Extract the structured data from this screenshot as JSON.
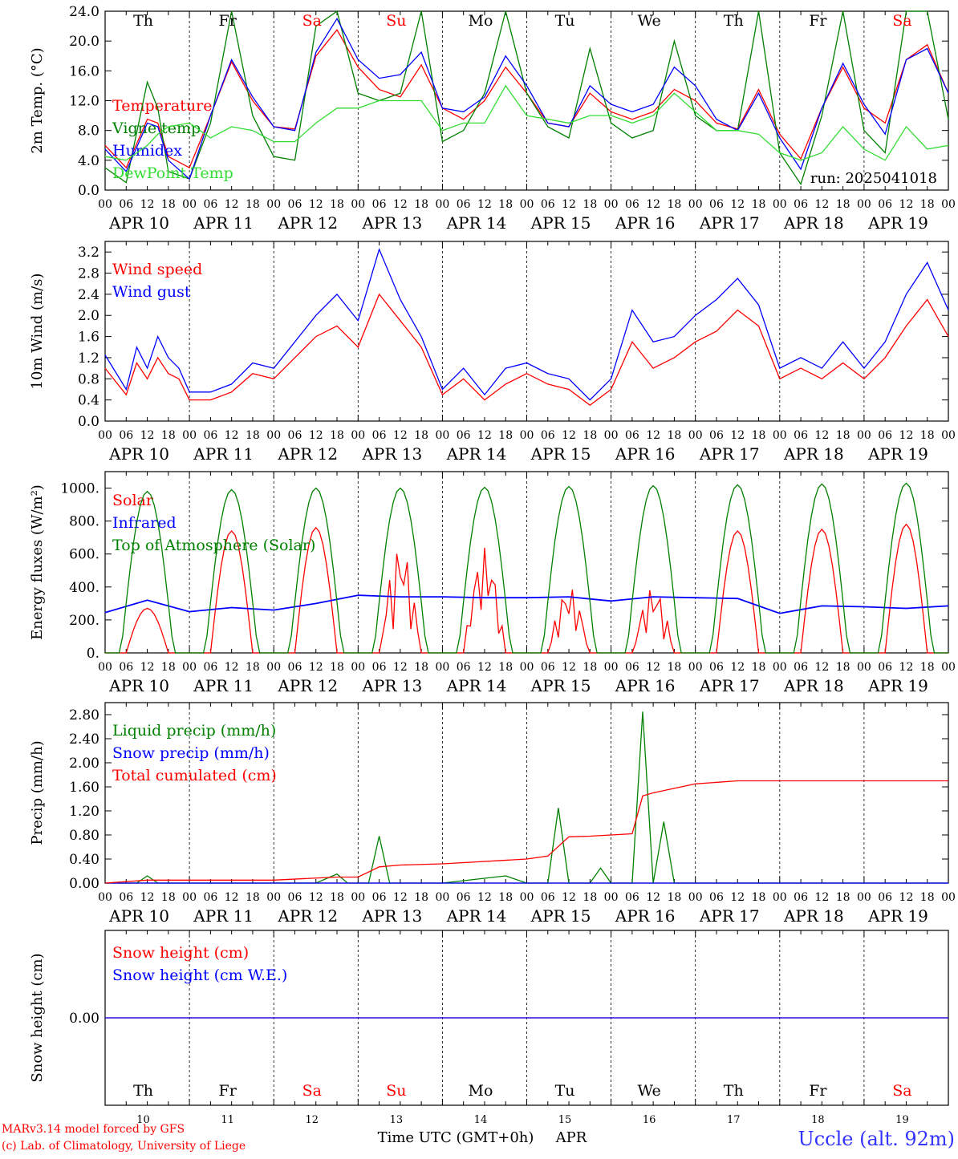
{
  "header": {
    "run_label": "run: 2025041018",
    "model_line_1": "MARv3.14 model forced by GFS",
    "model_line_2": "(c) Lab. of Climatology, University of Liege",
    "location": "Uccle (alt. 92m)",
    "x_title": "Time UTC (GMT+0h)",
    "month": "APR"
  },
  "colors": {
    "red": "#ff0000",
    "green": "#008000",
    "blue": "#0000ff",
    "light_green": "#33dd33",
    "axis": "#000000",
    "day_weekend": "#ff0000",
    "day_weekday": "#000000"
  },
  "time_axis": {
    "hour_ticks": [
      "00",
      "06",
      "12",
      "18"
    ],
    "final_tick": "00",
    "dates": [
      "APR 10",
      "APR 11",
      "APR 12",
      "APR 13",
      "APR 14",
      "APR 15",
      "APR 16",
      "APR 17",
      "APR 18",
      "APR 19"
    ],
    "day_numbers": [
      "10",
      "11",
      "12",
      "13",
      "14",
      "15",
      "16",
      "17",
      "18",
      "19"
    ],
    "weekdays": [
      "Th",
      "Fr",
      "Sa",
      "Su",
      "Mo",
      "Tu",
      "We",
      "Th",
      "Fr",
      "Sa"
    ],
    "weekend_flags": [
      false,
      false,
      true,
      true,
      false,
      false,
      false,
      false,
      false,
      true
    ]
  },
  "chart_data": [
    {
      "id": "temp",
      "type": "line",
      "ylabel": "2m Temp. (°C)",
      "ylim": [
        0,
        24
      ],
      "yticks": [
        "0.0",
        "4.0",
        "8.0",
        "12.0",
        "16.0",
        "20.0",
        "24.0"
      ],
      "x_unit": "hours since APR 10 00 UTC",
      "series": [
        {
          "name": "Temperature",
          "color": "red",
          "x": [
            0,
            6,
            12,
            15,
            18,
            24,
            30,
            36,
            42,
            48,
            54,
            60,
            66,
            72,
            78,
            84,
            90,
            96,
            102,
            108,
            114,
            120,
            126,
            132,
            138,
            144,
            150,
            156,
            162,
            168,
            174,
            180,
            186,
            192,
            198,
            204,
            210,
            216,
            222,
            228,
            234,
            240
          ],
          "y": [
            6.0,
            3.0,
            9.5,
            9.0,
            4.5,
            3.0,
            10.0,
            17.2,
            12.0,
            8.5,
            8.2,
            18.0,
            21.5,
            16.5,
            13.5,
            12.5,
            16.8,
            11.0,
            9.5,
            12.0,
            16.5,
            13.0,
            9.0,
            8.5,
            13.0,
            10.5,
            9.5,
            10.5,
            13.5,
            12.0,
            9.0,
            8.2,
            13.5,
            7.5,
            4.2,
            11.0,
            16.5,
            11.0,
            9.0,
            17.5,
            19.5,
            13.0
          ]
        },
        {
          "name": "Vigne temp",
          "color": "green",
          "x": [
            0,
            6,
            12,
            15,
            18,
            24,
            30,
            36,
            42,
            48,
            54,
            60,
            66,
            72,
            78,
            84,
            90,
            96,
            102,
            108,
            114,
            120,
            126,
            132,
            138,
            144,
            150,
            156,
            162,
            168,
            174,
            180,
            186,
            192,
            198,
            204,
            210,
            216,
            222,
            228,
            234,
            240
          ],
          "y": [
            3.0,
            1.0,
            14.5,
            11.0,
            2.5,
            1.5,
            9.0,
            24.0,
            10.0,
            4.5,
            4.0,
            22.0,
            24.0,
            13.0,
            12.0,
            13.0,
            24.0,
            6.5,
            8.0,
            13.0,
            24.0,
            13.0,
            8.5,
            7.0,
            19.0,
            9.0,
            7.0,
            8.0,
            20.0,
            10.0,
            8.0,
            8.0,
            24.0,
            5.0,
            0.8,
            10.0,
            24.0,
            8.0,
            5.0,
            24.0,
            24.0,
            9.5
          ]
        },
        {
          "name": "Humidex",
          "color": "blue",
          "x": [
            0,
            6,
            12,
            15,
            18,
            24,
            30,
            36,
            42,
            48,
            54,
            60,
            66,
            72,
            78,
            84,
            90,
            96,
            102,
            108,
            114,
            120,
            126,
            132,
            138,
            144,
            150,
            156,
            162,
            168,
            174,
            180,
            186,
            192,
            198,
            204,
            210,
            216,
            222,
            228,
            234,
            240
          ],
          "y": [
            5.5,
            2.5,
            9.0,
            8.5,
            4.0,
            1.5,
            10.0,
            17.5,
            12.5,
            8.5,
            8.0,
            18.5,
            23.0,
            17.5,
            15.0,
            15.5,
            18.5,
            11.0,
            10.5,
            12.5,
            18.0,
            14.0,
            9.0,
            8.5,
            14.0,
            11.5,
            10.5,
            11.5,
            16.5,
            14.0,
            9.5,
            8.0,
            13.0,
            7.0,
            2.8,
            11.0,
            17.0,
            11.5,
            7.5,
            17.5,
            19.0,
            13.0
          ]
        },
        {
          "name": "DewPoint Temp",
          "color": "light_green",
          "x": [
            0,
            6,
            12,
            15,
            18,
            24,
            30,
            36,
            42,
            48,
            54,
            60,
            66,
            72,
            78,
            84,
            90,
            96,
            102,
            108,
            114,
            120,
            126,
            132,
            138,
            144,
            150,
            156,
            162,
            168,
            174,
            180,
            186,
            192,
            198,
            204,
            210,
            216,
            222,
            228,
            234,
            240
          ],
          "y": [
            4.5,
            4.0,
            6.0,
            7.5,
            8.5,
            9.0,
            7.0,
            8.5,
            8.0,
            6.5,
            6.5,
            9.0,
            11.0,
            11.0,
            12.0,
            12.0,
            12.0,
            8.0,
            9.0,
            9.0,
            14.0,
            10.0,
            9.5,
            9.0,
            10.0,
            10.0,
            9.0,
            10.0,
            13.0,
            10.5,
            8.0,
            8.0,
            7.5,
            5.0,
            4.0,
            5.0,
            8.5,
            5.5,
            4.0,
            8.5,
            5.5,
            6.0
          ]
        }
      ]
    },
    {
      "id": "wind",
      "type": "line",
      "ylabel": "10m Wind (m/s)",
      "ylim": [
        0,
        3.4
      ],
      "yticks": [
        "0.0",
        "0.4",
        "0.8",
        "1.2",
        "1.6",
        "2.0",
        "2.4",
        "2.8",
        "3.2"
      ],
      "x_unit": "hours since APR 10 00 UTC",
      "series": [
        {
          "name": "Wind speed",
          "color": "red",
          "x": [
            0,
            6,
            9,
            12,
            15,
            18,
            21,
            24,
            30,
            36,
            42,
            48,
            54,
            60,
            66,
            72,
            78,
            84,
            90,
            96,
            102,
            108,
            114,
            120,
            126,
            132,
            138,
            144,
            150,
            156,
            162,
            168,
            174,
            180,
            186,
            192,
            198,
            204,
            210,
            216,
            222,
            228,
            234,
            240
          ],
          "y": [
            1.0,
            0.5,
            1.1,
            0.8,
            1.2,
            0.9,
            0.8,
            0.4,
            0.4,
            0.55,
            0.9,
            0.8,
            1.2,
            1.6,
            1.8,
            1.4,
            2.4,
            1.9,
            1.4,
            0.5,
            0.8,
            0.4,
            0.7,
            0.9,
            0.7,
            0.6,
            0.3,
            0.6,
            1.5,
            1.0,
            1.2,
            1.5,
            1.7,
            2.1,
            1.8,
            0.8,
            1.0,
            0.8,
            1.1,
            0.8,
            1.2,
            1.8,
            2.3,
            1.6
          ]
        },
        {
          "name": "Wind gust",
          "color": "blue",
          "x": [
            0,
            6,
            9,
            12,
            15,
            18,
            21,
            24,
            30,
            36,
            42,
            48,
            54,
            60,
            66,
            72,
            78,
            84,
            90,
            96,
            102,
            108,
            114,
            120,
            126,
            132,
            138,
            144,
            150,
            156,
            162,
            168,
            174,
            180,
            186,
            192,
            198,
            204,
            210,
            216,
            222,
            228,
            234,
            240
          ],
          "y": [
            1.25,
            0.6,
            1.4,
            1.0,
            1.6,
            1.2,
            1.0,
            0.55,
            0.55,
            0.7,
            1.1,
            1.0,
            1.5,
            2.0,
            2.4,
            1.9,
            3.25,
            2.3,
            1.6,
            0.6,
            1.0,
            0.5,
            1.0,
            1.1,
            0.9,
            0.8,
            0.4,
            0.8,
            2.1,
            1.5,
            1.6,
            2.0,
            2.3,
            2.7,
            2.2,
            1.0,
            1.2,
            1.0,
            1.5,
            1.0,
            1.5,
            2.4,
            3.0,
            2.1
          ]
        }
      ]
    },
    {
      "id": "energy",
      "type": "line",
      "ylabel": "Energy fluxes (W/m²)",
      "ylim": [
        0,
        1100
      ],
      "yticks": [
        "0.",
        "200.",
        "400.",
        "600.",
        "800.",
        "1000."
      ],
      "x_unit": "hours since APR 10 00 UTC",
      "series": [
        {
          "name": "Solar",
          "color": "red",
          "peaks": [
            270,
            740,
            760,
            650,
            640,
            400,
            400,
            740,
            750,
            780
          ]
        },
        {
          "name": "Infrared",
          "color": "blue",
          "x": [
            0,
            12,
            24,
            36,
            48,
            60,
            72,
            84,
            96,
            108,
            120,
            132,
            144,
            156,
            168,
            180,
            192,
            204,
            216,
            228,
            240
          ],
          "y": [
            245,
            320,
            250,
            275,
            260,
            300,
            350,
            340,
            340,
            335,
            335,
            340,
            315,
            340,
            335,
            330,
            240,
            285,
            280,
            270,
            285
          ]
        },
        {
          "name": "Top of Atmosphere (Solar)",
          "color": "green",
          "peaks": [
            980,
            990,
            1000,
            1000,
            1005,
            1010,
            1015,
            1020,
            1025,
            1030
          ]
        }
      ]
    },
    {
      "id": "precip",
      "type": "line",
      "ylabel": "Precip (mm/h)",
      "ylim": [
        0,
        3.0
      ],
      "yticks": [
        "0.00",
        "0.40",
        "0.80",
        "1.20",
        "1.60",
        "2.00",
        "2.40",
        "2.80"
      ],
      "x_unit": "hours since APR 10 00 UTC",
      "series": [
        {
          "name": "Liquid precip (mm/h)",
          "color": "green",
          "x": [
            0,
            9,
            12,
            15,
            24,
            60,
            66,
            69,
            75,
            78,
            81,
            84,
            96,
            114,
            120,
            126,
            129,
            132,
            138,
            141,
            144,
            150,
            153,
            156,
            159,
            162,
            165,
            168,
            240
          ],
          "y": [
            0,
            0,
            0.12,
            0,
            0,
            0,
            0.15,
            0,
            0,
            0.78,
            0,
            0,
            0,
            0.12,
            0,
            0,
            1.25,
            0,
            0,
            0.25,
            0,
            0,
            2.85,
            0,
            1.02,
            0,
            0,
            0,
            0
          ]
        },
        {
          "name": "Snow precip (mm/h)",
          "color": "blue",
          "x": [
            0,
            240
          ],
          "y": [
            0,
            0
          ]
        },
        {
          "name": "Total cumulated (cm)",
          "color": "red",
          "x": [
            0,
            12,
            24,
            48,
            66,
            72,
            78,
            84,
            96,
            120,
            126,
            132,
            138,
            144,
            150,
            153,
            156,
            168,
            180,
            240
          ],
          "y": [
            0,
            0.05,
            0.05,
            0.05,
            0.1,
            0.1,
            0.27,
            0.3,
            0.32,
            0.4,
            0.45,
            0.77,
            0.78,
            0.8,
            0.82,
            1.45,
            1.5,
            1.65,
            1.7,
            1.7
          ]
        }
      ]
    },
    {
      "id": "snow",
      "type": "line",
      "ylabel": "Snow height (cm)",
      "ylim": [
        -0.1,
        0.1
      ],
      "yticks": [
        "0.00"
      ],
      "x_unit": "hours since APR 10 00 UTC",
      "series": [
        {
          "name": "Snow height (cm)",
          "color": "red",
          "x": [
            0,
            240
          ],
          "y": [
            0,
            0
          ]
        },
        {
          "name": "Snow height (cm W.E.)",
          "color": "blue",
          "x": [
            0,
            240
          ],
          "y": [
            0,
            0
          ]
        }
      ]
    }
  ]
}
